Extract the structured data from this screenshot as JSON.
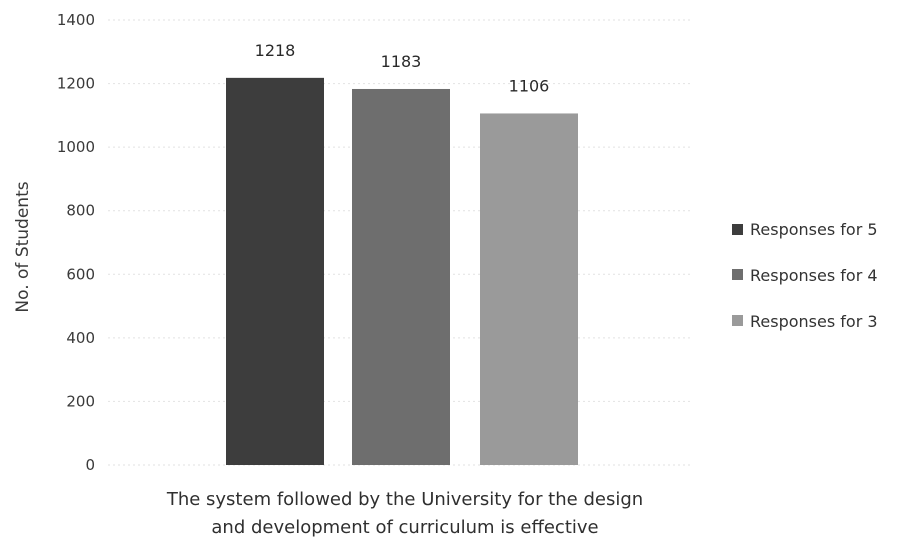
{
  "chart_data": {
    "type": "bar",
    "title": "",
    "xlabel": "",
    "ylabel": "No. of Students",
    "ylim": [
      0,
      1400
    ],
    "yticks": [
      0,
      200,
      400,
      600,
      800,
      1000,
      1200,
      1400
    ],
    "categories": [
      "The system followed by the University for the design and development of curriculum is effective"
    ],
    "category_lines": [
      "The system followed by the University for the design",
      "and development of curriculum is effective"
    ],
    "grid": true,
    "legend_position": "right",
    "series": [
      {
        "name": "Responses for 5",
        "values": [
          1218
        ],
        "color": "#3d3d3d"
      },
      {
        "name": "Responses for 4",
        "values": [
          1183
        ],
        "color": "#6e6e6e"
      },
      {
        "name": "Responses for 3",
        "values": [
          1106
        ],
        "color": "#9a9a9a"
      }
    ]
  }
}
